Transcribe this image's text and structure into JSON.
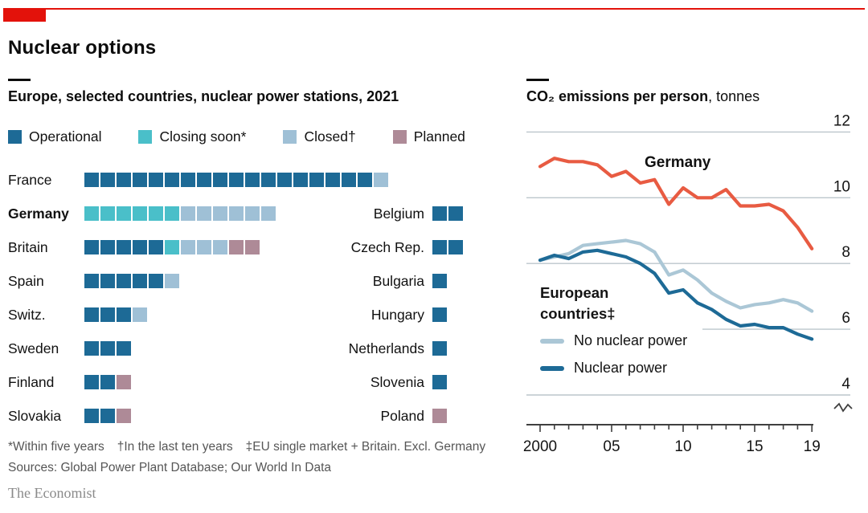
{
  "header": {
    "title": "Nuclear options",
    "brand_color": "#e3120b"
  },
  "chart_data": [
    {
      "type": "waffle",
      "title": "Europe, selected countries, nuclear power stations, 2021",
      "legend": [
        {
          "key": "operational",
          "label": "Operational"
        },
        {
          "key": "closing",
          "label": "Closing soon*"
        },
        {
          "key": "closed",
          "label": "Closed†"
        },
        {
          "key": "planned",
          "label": "Planned"
        }
      ],
      "palette": {
        "operational": "#1d6a96",
        "closing": "#4abfc9",
        "closed": "#9fc0d6",
        "planned": "#ae8a97"
      },
      "rows": [
        {
          "left": {
            "country": "France",
            "bold": false,
            "segments": [
              [
                "operational",
                18
              ],
              [
                "closed",
                1
              ]
            ]
          },
          "right": null
        },
        {
          "left": {
            "country": "Germany",
            "bold": true,
            "segments": [
              [
                "closing",
                6
              ],
              [
                "closed",
                6
              ]
            ]
          },
          "right": {
            "country": "Belgium",
            "segments": [
              [
                "operational",
                2
              ]
            ]
          }
        },
        {
          "left": {
            "country": "Britain",
            "bold": false,
            "segments": [
              [
                "operational",
                5
              ],
              [
                "closing",
                1
              ],
              [
                "closed",
                3
              ],
              [
                "planned",
                2
              ]
            ]
          },
          "right": {
            "country": "Czech Rep.",
            "segments": [
              [
                "operational",
                2
              ]
            ]
          }
        },
        {
          "left": {
            "country": "Spain",
            "bold": false,
            "segments": [
              [
                "operational",
                5
              ],
              [
                "closed",
                1
              ]
            ]
          },
          "right": {
            "country": "Bulgaria",
            "segments": [
              [
                "operational",
                1
              ]
            ]
          }
        },
        {
          "left": {
            "country": "Switz.",
            "bold": false,
            "segments": [
              [
                "operational",
                3
              ],
              [
                "closed",
                1
              ]
            ]
          },
          "right": {
            "country": "Hungary",
            "segments": [
              [
                "operational",
                1
              ]
            ]
          }
        },
        {
          "left": {
            "country": "Sweden",
            "bold": false,
            "segments": [
              [
                "operational",
                3
              ]
            ]
          },
          "right": {
            "country": "Netherlands",
            "segments": [
              [
                "operational",
                1
              ]
            ]
          }
        },
        {
          "left": {
            "country": "Finland",
            "bold": false,
            "segments": [
              [
                "operational",
                2
              ],
              [
                "planned",
                1
              ]
            ]
          },
          "right": {
            "country": "Slovenia",
            "segments": [
              [
                "operational",
                1
              ]
            ]
          }
        },
        {
          "left": {
            "country": "Slovakia",
            "bold": false,
            "segments": [
              [
                "operational",
                2
              ],
              [
                "planned",
                1
              ]
            ]
          },
          "right": {
            "country": "Poland",
            "segments": [
              [
                "planned",
                1
              ]
            ]
          }
        }
      ]
    },
    {
      "type": "line",
      "title_main": "CO₂ emissions per person",
      "title_unit": ", tonnes",
      "x": [
        2000,
        2001,
        2002,
        2003,
        2004,
        2005,
        2006,
        2007,
        2008,
        2009,
        2010,
        2011,
        2012,
        2013,
        2014,
        2015,
        2016,
        2017,
        2018,
        2019
      ],
      "series": [
        {
          "name": "Germany",
          "color": "#e85b42",
          "values": [
            10.95,
            11.2,
            11.1,
            11.1,
            11.0,
            10.65,
            10.8,
            10.45,
            10.55,
            9.8,
            10.3,
            10.0,
            10.0,
            10.25,
            9.75,
            9.75,
            9.8,
            9.6,
            9.1,
            8.45
          ]
        },
        {
          "name": "No nuclear power",
          "color": "#abc7d6",
          "values": [
            8.1,
            8.2,
            8.3,
            8.55,
            8.6,
            8.65,
            8.7,
            8.6,
            8.35,
            7.65,
            7.8,
            7.5,
            7.1,
            6.85,
            6.65,
            6.75,
            6.8,
            6.9,
            6.8,
            6.55
          ]
        },
        {
          "name": "Nuclear power",
          "color": "#1d6a96",
          "values": [
            8.1,
            8.25,
            8.15,
            8.35,
            8.4,
            8.3,
            8.2,
            8.0,
            7.7,
            7.1,
            7.2,
            6.8,
            6.6,
            6.3,
            6.1,
            6.15,
            6.05,
            6.05,
            5.85,
            5.7
          ]
        }
      ],
      "annotation": "Germany",
      "group_label_lines": [
        "European",
        "countries‡"
      ],
      "line_legend": [
        {
          "label": "No nuclear power",
          "color": "#abc7d6"
        },
        {
          "label": "Nuclear power",
          "color": "#1d6a96"
        }
      ],
      "ylim": [
        4,
        12
      ],
      "yticks": [
        12,
        10,
        8,
        6,
        4
      ],
      "partial_grid_value": 6,
      "xticks": [
        {
          "year": 2000,
          "label": "2000"
        },
        {
          "year": 2005,
          "label": "05"
        },
        {
          "year": 2010,
          "label": "10"
        },
        {
          "year": 2015,
          "label": "15"
        },
        {
          "year": 2019,
          "label": "19"
        }
      ],
      "grid_color": "#bcc6cc",
      "axis_color": "#3f3f3f"
    }
  ],
  "footnotes": [
    "*Within five years",
    "†In the last ten years",
    "‡EU single market + Britain. Excl. Germany"
  ],
  "sources": "Sources: Global Power Plant Database; Our World In Data",
  "signature": "The Economist"
}
